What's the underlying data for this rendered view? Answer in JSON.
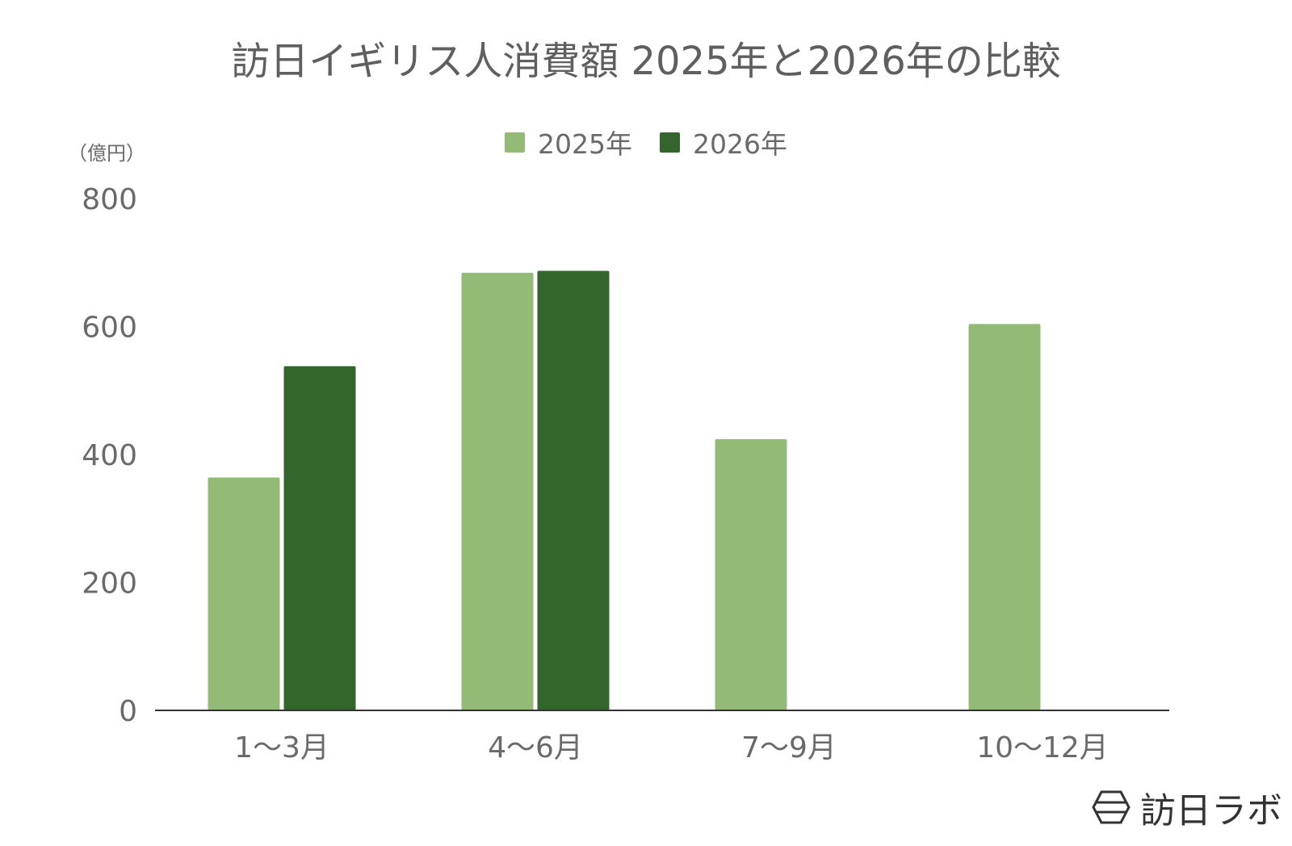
{
  "chart_data": {
    "type": "bar",
    "title": "訪日イギリス人消費額 2025年と2026年の比較",
    "ylabel": "（億円）",
    "categories": [
      "1〜3月",
      "4〜6月",
      "7〜9月",
      "10〜12月"
    ],
    "series": [
      {
        "name": "2025年",
        "color": "#93bb76",
        "values": [
          364,
          684,
          424,
          604
        ]
      },
      {
        "name": "2026年",
        "color": "#33652d",
        "values": [
          538,
          687,
          null,
          null
        ]
      }
    ],
    "ylim": [
      0,
      800
    ],
    "yticks": [
      "0",
      "200",
      "400",
      "600",
      "800"
    ],
    "grid": false,
    "legend_position": "top"
  },
  "brand": {
    "name": "訪日ラボ",
    "icon": "hexagon-logo-icon"
  }
}
